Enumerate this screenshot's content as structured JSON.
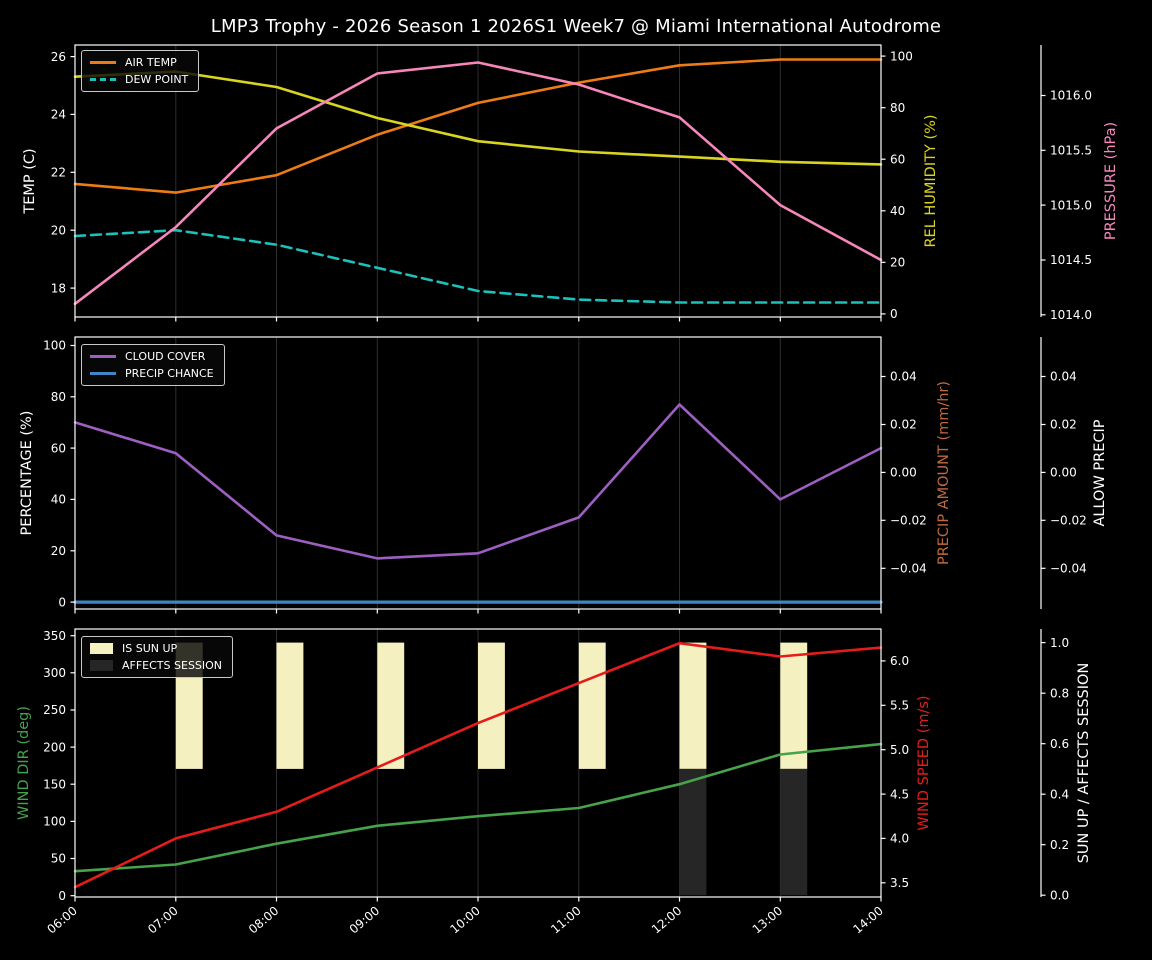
{
  "title": "LMP3 Trophy - 2026 Season 1 2026S1 Week7 @ Miami International Autodrome",
  "colors": {
    "background": "#000000",
    "foreground": "#ffffff",
    "grid": "#2e2e2e",
    "legend_background": "#080808",
    "legend_border": "#c9c9c9"
  },
  "chart_data": {
    "type": "line",
    "x_labels": [
      "06:00",
      "07:00",
      "08:00",
      "09:00",
      "10:00",
      "11:00",
      "12:00",
      "13:00",
      "14:00"
    ],
    "panels": [
      {
        "name": "temperature-humidity-pressure",
        "legend": [
          {
            "label": "AIR TEMP",
            "swatch": "line",
            "color": "#ee7c15"
          },
          {
            "label": "DEW POINT",
            "swatch": "dashed-line",
            "color": "#1fbfba"
          }
        ],
        "axes": {
          "left": {
            "label": "TEMP (C)",
            "color": "#ffffff",
            "range": [
              17.0,
              26.4
            ],
            "tick_values": [
              18,
              20,
              22,
              24,
              26
            ],
            "tick_labels": [
              "18",
              "20",
              "22",
              "24",
              "26"
            ]
          },
          "right_inner": {
            "label": "REL HUMIDITY (%)",
            "color": "#d9d420",
            "range": [
              -1.2,
              104.3
            ],
            "tick_values": [
              0,
              20,
              40,
              60,
              80,
              100
            ],
            "tick_labels": [
              "0",
              "20",
              "40",
              "60",
              "80",
              "100"
            ]
          },
          "right_outer": {
            "label": "PRESSURE (hPa)",
            "color": "#f787bb",
            "range": [
              1013.98,
              1016.46
            ],
            "tick_values": [
              1014.0,
              1014.5,
              1015.0,
              1015.5,
              1016.0
            ],
            "tick_labels": [
              "1014.0",
              "1014.5",
              "1015.0",
              "1015.5",
              "1016.0"
            ]
          }
        },
        "series": [
          {
            "name": "AIR TEMP",
            "axis": "left",
            "color": "#ee7c15",
            "dash": false,
            "values": [
              21.6,
              21.3,
              21.9,
              23.3,
              24.4,
              25.1,
              25.7,
              25.9,
              25.9
            ]
          },
          {
            "name": "DEW POINT",
            "axis": "left",
            "color": "#1fbfba",
            "dash": true,
            "values": [
              19.8,
              20.0,
              19.5,
              18.7,
              17.9,
              17.6,
              17.5,
              17.5,
              17.5
            ]
          },
          {
            "name": "REL HUMIDITY",
            "axis": "right_inner",
            "color": "#d9d420",
            "dash": false,
            "values": [
              92,
              94,
              88,
              76,
              67,
              63,
              61,
              59,
              58
            ]
          },
          {
            "name": "PRESSURE",
            "axis": "right_outer",
            "color": "#f787bb",
            "dash": false,
            "values": [
              1014.1,
              1014.8,
              1015.7,
              1016.2,
              1016.3,
              1016.1,
              1015.8,
              1015.0,
              1014.5
            ]
          }
        ]
      },
      {
        "name": "cloud-precip",
        "legend": [
          {
            "label": "CLOUD COVER",
            "swatch": "line",
            "color": "#9d60c2"
          },
          {
            "label": "PRECIP CHANCE",
            "swatch": "line",
            "color": "#4086c6"
          }
        ],
        "axes": {
          "left": {
            "label": "PERCENTAGE (%)",
            "color": "#ffffff",
            "range": [
              -2.7,
              103.3
            ],
            "tick_values": [
              0,
              20,
              40,
              60,
              80,
              100
            ],
            "tick_labels": [
              "0",
              "20",
              "40",
              "60",
              "80",
              "100"
            ]
          },
          "right_inner": {
            "label": "PRECIP AMOUNT (mm/hr)",
            "color": "#bf6a3e",
            "range": [
              -0.057,
              0.0565
            ],
            "tick_values": [
              -0.04,
              -0.02,
              0,
              0.02,
              0.04
            ],
            "tick_labels": [
              "−0.04",
              "−0.02",
              "0.00",
              "0.02",
              "0.04"
            ]
          },
          "right_outer": {
            "label": "ALLOW PRECIP",
            "color": "#ffffff",
            "range": [
              -0.057,
              0.0565
            ],
            "tick_values": [
              -0.04,
              -0.02,
              0,
              0.02,
              0.04
            ],
            "tick_labels": [
              "−0.04",
              "−0.02",
              "0.00",
              "0.02",
              "0.04"
            ]
          }
        },
        "series": [
          {
            "name": "CLOUD COVER",
            "axis": "left",
            "color": "#9d60c2",
            "dash": false,
            "values": [
              70,
              58,
              26,
              17,
              19,
              33,
              77,
              40,
              60
            ]
          },
          {
            "name": "PRECIP CHANCE",
            "axis": "left",
            "color": "#4086c6",
            "dash": false,
            "width": 3.2,
            "values": [
              0,
              0,
              0,
              0,
              0,
              0,
              0,
              0,
              0
            ]
          }
        ]
      },
      {
        "name": "wind-sun",
        "show_x_labels": true,
        "legend": [
          {
            "label": "IS SUN UP",
            "swatch": "patch",
            "color": "#f5f0c0"
          },
          {
            "label": "AFFECTS SESSION",
            "swatch": "patch",
            "color": "#262626"
          }
        ],
        "axes": {
          "left": {
            "label": "WIND DIR (deg)",
            "color": "#46a24b",
            "range": [
              -1.8,
              359
            ],
            "tick_values": [
              0,
              50,
              100,
              150,
              200,
              250,
              300,
              350
            ],
            "tick_labels": [
              "0",
              "50",
              "100",
              "150",
              "200",
              "250",
              "300",
              "350"
            ]
          },
          "right_inner": {
            "label": "WIND SPEED (m/s)",
            "color": "#e51c1c",
            "range": [
              3.34,
              6.36
            ],
            "tick_values": [
              3.5,
              4.0,
              4.5,
              5.0,
              5.5,
              6.0
            ],
            "tick_labels": [
              "3.5",
              "4.0",
              "4.5",
              "5.0",
              "5.5",
              "6.0"
            ]
          },
          "right_outer": {
            "label": "SUN UP / AFFECTS SESSION",
            "color": "#ffffff",
            "range": [
              -0.007,
              1.054
            ],
            "tick_values": [
              0,
              0.2,
              0.4,
              0.6,
              0.8,
              1.0
            ],
            "tick_labels": [
              "0.0",
              "0.2",
              "0.4",
              "0.6",
              "0.8",
              "1.0"
            ]
          }
        },
        "bars": [
          {
            "name": "IS SUN UP",
            "axis": "right_outer",
            "color": "#f5f0c0",
            "span": [
              0.5,
              1.0
            ],
            "at": [
              "07:00",
              "08:00",
              "09:00",
              "10:00",
              "11:00",
              "12:00",
              "13:00"
            ]
          },
          {
            "name": "AFFECTS SESSION",
            "axis": "right_outer",
            "color": "#262626",
            "span": [
              0.0,
              0.5
            ],
            "at": [
              "12:00",
              "13:00"
            ]
          }
        ],
        "series": [
          {
            "name": "WIND DIR",
            "axis": "left",
            "color": "#46a24b",
            "dash": false,
            "values": [
              33,
              42,
              70,
              94,
              107,
              118,
              150,
              190,
              204
            ]
          },
          {
            "name": "WIND SPEED",
            "axis": "right_inner",
            "color": "#e51c1c",
            "dash": false,
            "values": [
              3.45,
              4.0,
              4.3,
              4.8,
              5.3,
              5.75,
              6.2,
              6.05,
              6.15
            ]
          }
        ]
      }
    ]
  }
}
